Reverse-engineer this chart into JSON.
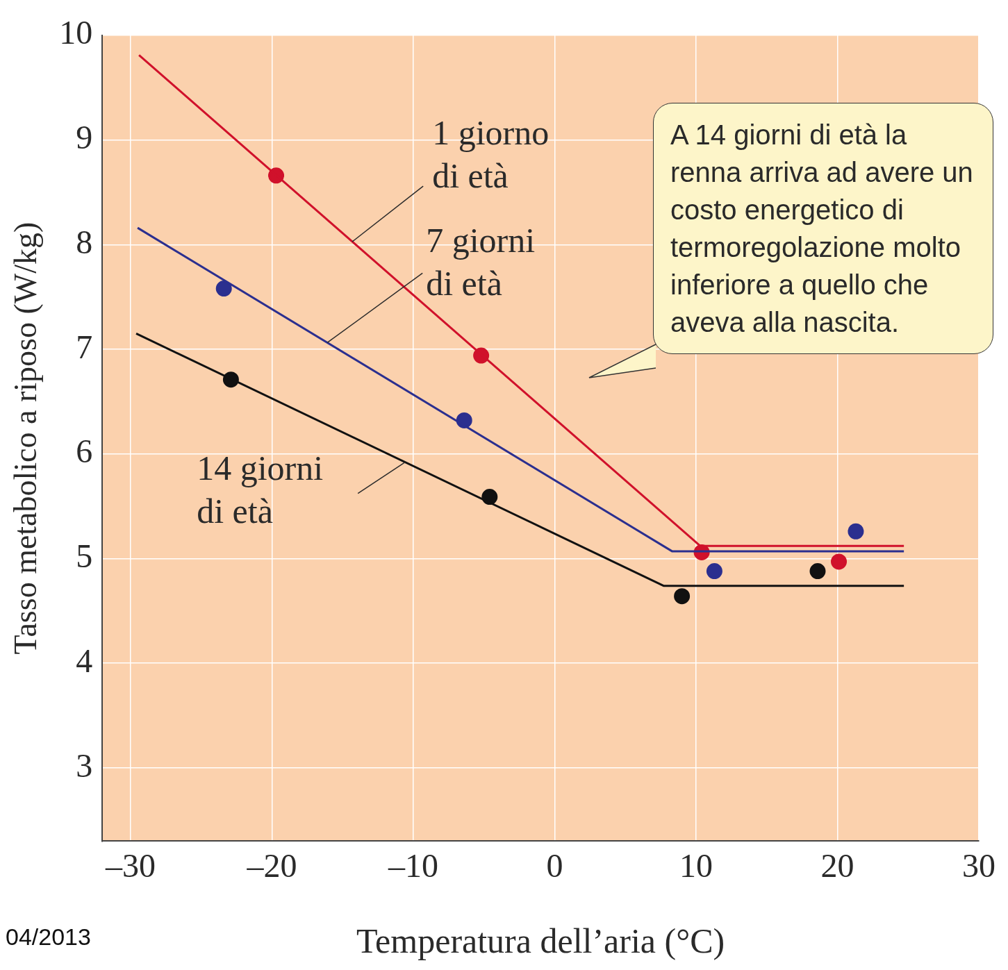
{
  "chart_data": {
    "type": "line",
    "xlabel": "Temperatura dell’aria (°C)",
    "ylabel": "Tasso metabolico a riposo (W/kg)",
    "xlim": [
      -32,
      30
    ],
    "xticks": [
      {
        "value": -30,
        "label": "–30"
      },
      {
        "value": -20,
        "label": "–20"
      },
      {
        "value": -10,
        "label": "–10"
      },
      0,
      10,
      20,
      30
    ],
    "ylim": [
      2.3,
      10
    ],
    "yticks": [
      3,
      4,
      5,
      6,
      7,
      8,
      9,
      10
    ],
    "grid": true,
    "legend": false,
    "series": [
      {
        "name": "1 giorno di età",
        "type": "line",
        "marker": "none",
        "color": "#d0112b",
        "x": [
          -29.4,
          10.3,
          24.7
        ],
        "values": [
          9.81,
          5.12,
          5.12
        ]
      },
      {
        "name": "7 giorni di età",
        "type": "line",
        "marker": "none",
        "color": "#2b2f8f",
        "x": [
          -29.5,
          8.3,
          24.7
        ],
        "values": [
          8.16,
          5.07,
          5.07
        ]
      },
      {
        "name": "14 giorni di età",
        "type": "line",
        "marker": "none",
        "color": "#111111",
        "x": [
          -29.6,
          7.7,
          24.7
        ],
        "values": [
          7.15,
          4.74,
          4.74
        ]
      },
      {
        "type": "scatter",
        "marker": "circle",
        "color": "#d0112b",
        "x": [
          -19.7,
          -5.2,
          10.4,
          20.1
        ],
        "values": [
          8.66,
          6.94,
          5.06,
          4.97
        ]
      },
      {
        "type": "scatter",
        "marker": "circle",
        "color": "#2b2f8f",
        "x": [
          -23.4,
          -6.4,
          11.3,
          21.3
        ],
        "values": [
          7.58,
          6.32,
          4.88,
          5.26
        ]
      },
      {
        "type": "scatter",
        "marker": "circle",
        "color": "#111111",
        "x": [
          -22.9,
          -4.6,
          9.0,
          18.6
        ],
        "values": [
          6.71,
          5.59,
          4.64,
          4.88
        ]
      }
    ],
    "annotations": [
      "A 14 giorni di età la renna arriva ad avere un costo energetico di termoregolazione molto inferiore a quello che aveva alla nascita.",
      "04/2013"
    ]
  }
}
